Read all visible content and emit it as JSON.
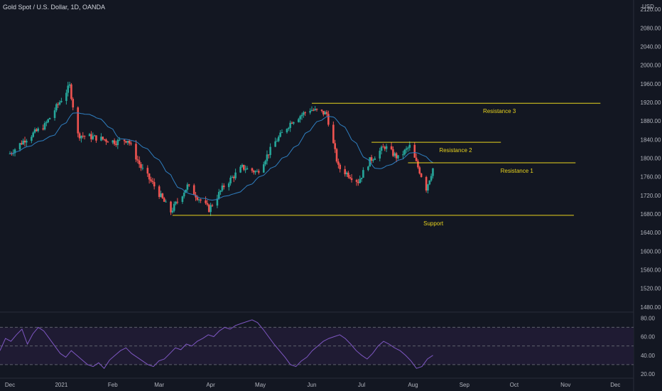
{
  "header": {
    "title": "Gold Spot / U.S. Dollar, 1D, OANDA",
    "currency": "USD"
  },
  "colors": {
    "background": "#131722",
    "grid": "#1e2230",
    "up": "#26a69a",
    "down": "#ef5350",
    "ma": "#2f7fc1",
    "levels": "#e8d31e",
    "rsi": "#7e57c2",
    "rsi_band": "#1f1b33",
    "axis_text": "#b2b5be"
  },
  "chart_data": [
    {
      "type": "candlestick",
      "title": "Gold Spot / U.S. Dollar, 1D, OANDA",
      "y_axis": {
        "ticks": [
          1480,
          1520,
          1560,
          1600,
          1640,
          1680,
          1720,
          1760,
          1800,
          1840,
          1880,
          1920,
          1960,
          2000,
          2040,
          2080,
          2120
        ],
        "tick_labels": [
          "1480.00",
          "1520.00",
          "1560.00",
          "1600.00",
          "1640.00",
          "1680.00",
          "1720.00",
          "1760.00",
          "1800.00",
          "1840.00",
          "1880.00",
          "1920.00",
          "1960.00",
          "2000.00",
          "2040.00",
          "2080.00",
          "2120.00"
        ],
        "ylim": [
          1472,
          2140
        ],
        "side": "right"
      },
      "x_axis": {
        "tick_labels": [
          "Dec",
          "2021",
          "Feb",
          "Mar",
          "Apr",
          "May",
          "Jun",
          "Jul",
          "Aug",
          "Sep",
          "Oct",
          "Nov",
          "Dec"
        ]
      },
      "grid": false,
      "moving_average": true,
      "approx_close_path": [
        [
          "2020-12-01",
          1810
        ],
        [
          "2020-12-10",
          1840
        ],
        [
          "2020-12-22",
          1870
        ],
        [
          "2021-01-06",
          1955
        ],
        [
          "2021-01-11",
          1850
        ],
        [
          "2021-01-20",
          1845
        ],
        [
          "2021-02-03",
          1835
        ],
        [
          "2021-02-10",
          1840
        ],
        [
          "2021-02-18",
          1780
        ],
        [
          "2021-02-26",
          1740
        ],
        [
          "2021-03-05",
          1700
        ],
        [
          "2021-03-08",
          1685
        ],
        [
          "2021-03-18",
          1740
        ],
        [
          "2021-03-31",
          1690
        ],
        [
          "2021-04-09",
          1740
        ],
        [
          "2021-04-20",
          1780
        ],
        [
          "2021-04-29",
          1770
        ],
        [
          "2021-05-10",
          1835
        ],
        [
          "2021-05-20",
          1880
        ],
        [
          "2021-05-31",
          1905
        ],
        [
          "2021-06-10",
          1895
        ],
        [
          "2021-06-17",
          1780
        ],
        [
          "2021-06-29",
          1750
        ],
        [
          "2021-07-06",
          1795
        ],
        [
          "2021-07-15",
          1825
        ],
        [
          "2021-07-23",
          1800
        ],
        [
          "2021-07-30",
          1825
        ],
        [
          "2021-08-06",
          1763
        ],
        [
          "2021-08-09",
          1735
        ],
        [
          "2021-08-13",
          1778
        ]
      ],
      "levels": [
        {
          "label": "Resistance 3",
          "value": 1918,
          "from": "2021-06-01",
          "to": "2021-11-22"
        },
        {
          "label": "Resistance 2",
          "value": 1834,
          "from": "2021-07-07",
          "to": "2021-09-23"
        },
        {
          "label": "Resistance 1",
          "value": 1790,
          "from": "2021-07-29",
          "to": "2021-11-07"
        },
        {
          "label": "Support",
          "value": 1677,
          "from": "2021-03-09",
          "to": "2021-11-06"
        }
      ]
    },
    {
      "type": "line",
      "name": "RSI",
      "y_axis": {
        "tick_labels": [
          "20.00",
          "40.00",
          "60.00",
          "80.00"
        ],
        "ticks": [
          20,
          40,
          60,
          80
        ],
        "ylim": [
          17,
          84
        ]
      },
      "band": [
        30,
        70
      ],
      "values": [
        45,
        58,
        55,
        62,
        68,
        52,
        63,
        70,
        66,
        58,
        50,
        42,
        38,
        45,
        40,
        35,
        30,
        28,
        32,
        26,
        35,
        40,
        45,
        48,
        42,
        38,
        34,
        30,
        28,
        34,
        36,
        42,
        48,
        46,
        52,
        50,
        55,
        58,
        62,
        60,
        66,
        70,
        68,
        72,
        74,
        76,
        78,
        75,
        68,
        60,
        52,
        45,
        38,
        30,
        28,
        34,
        38,
        45,
        50,
        55,
        58,
        60,
        62,
        58,
        52,
        45,
        40,
        36,
        42,
        50,
        55,
        52,
        48,
        45,
        40,
        34,
        26,
        28,
        36,
        40
      ]
    }
  ]
}
